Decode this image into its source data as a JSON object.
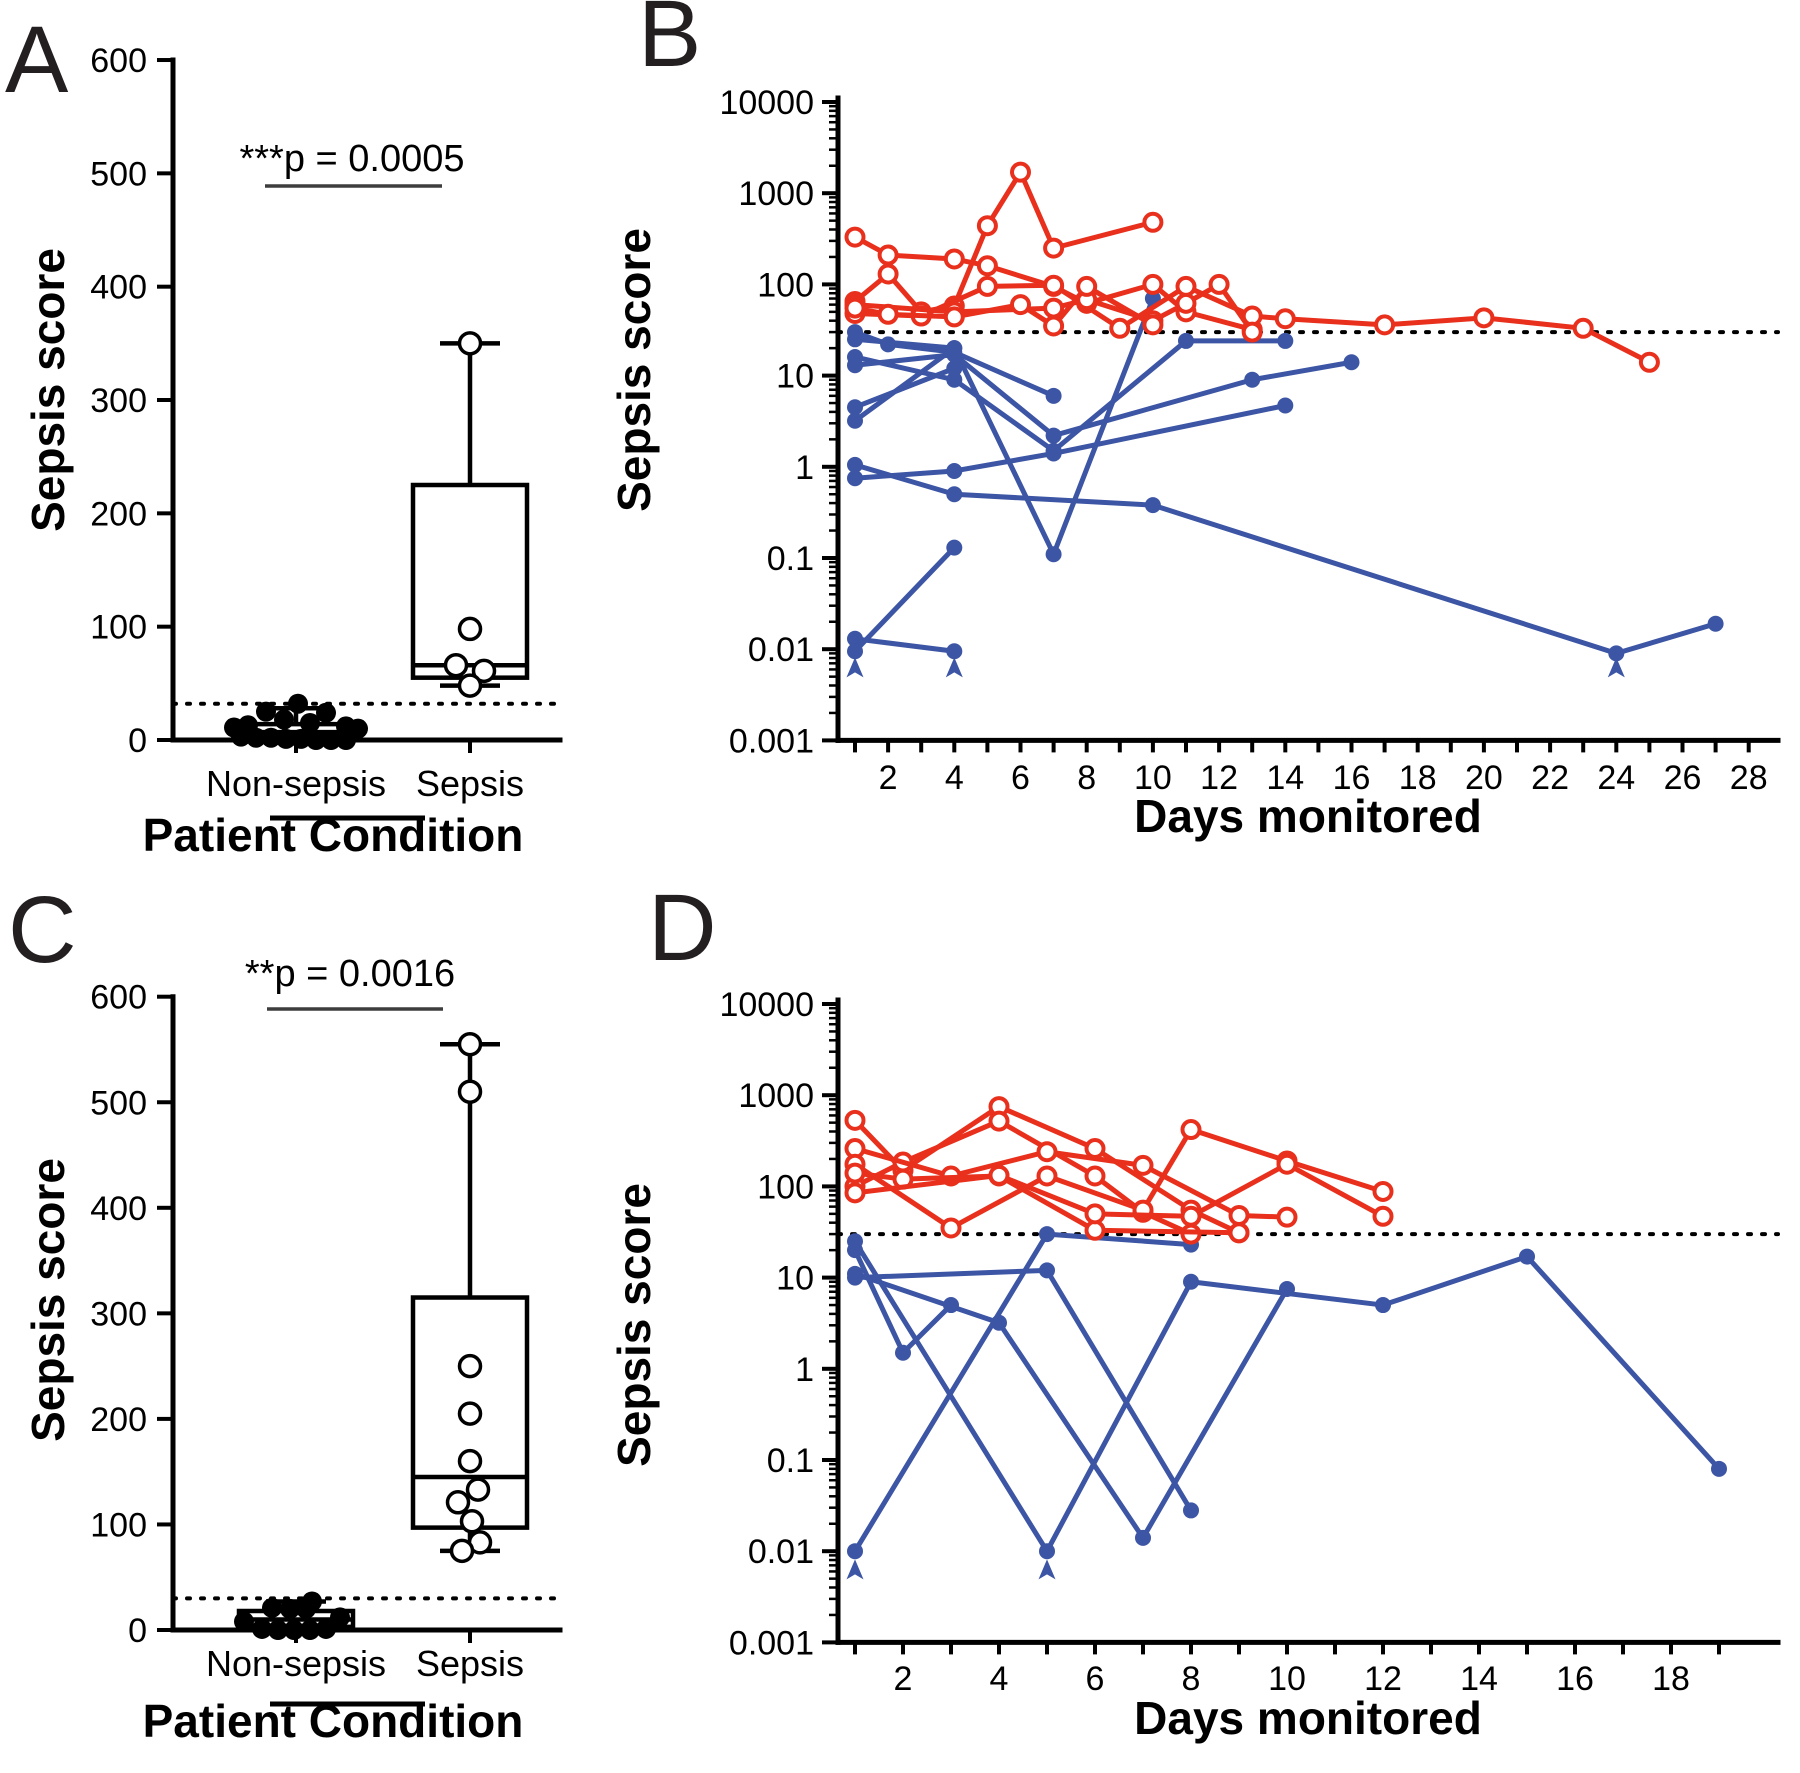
{
  "colors": {
    "sepsis": "#e8301d",
    "non_sepsis": "#3c55a4",
    "ink": "#000000"
  },
  "chart_data": [
    {
      "panel": "A",
      "letter": "A",
      "type": "box",
      "ylabel": "Sepsis score",
      "xlabel": "Patient Condition",
      "annotation": "***p = 0.0005",
      "ylim": [
        0,
        600
      ],
      "y_ticks": [
        0,
        100,
        200,
        300,
        400,
        500,
        600
      ],
      "categories": [
        "Non-sepsis",
        "Sepsis"
      ],
      "threshold": 32,
      "boxes": [
        {
          "category": "Non-sepsis",
          "marker": "filled-circle",
          "whisker_low": 0,
          "q1": 2,
          "median": 7,
          "q3": 14,
          "whisker_high": 28,
          "points": [
            32,
            25,
            24,
            18,
            15,
            13,
            12,
            11,
            10,
            3,
            2,
            2,
            1,
            1,
            0,
            0,
            0
          ]
        },
        {
          "category": "Sepsis",
          "marker": "open-circle",
          "whisker_low": 48,
          "q1": 55,
          "median": 66,
          "q3": 225,
          "whisker_high": 350,
          "points": [
            350,
            98,
            66,
            61,
            48
          ]
        }
      ]
    },
    {
      "panel": "B",
      "letter": "B",
      "type": "line",
      "yscale": "log",
      "ylabel": "Sepsis score",
      "xlabel": "Days monitored",
      "ylim": [
        0.001,
        10000
      ],
      "y_ticks": [
        "0.001",
        "0.01",
        "0.1",
        "1",
        "10",
        "100",
        "1000",
        "10000"
      ],
      "x_ticks": [
        2,
        4,
        6,
        8,
        10,
        12,
        14,
        16,
        18,
        20,
        22,
        24,
        26,
        28
      ],
      "xlim": [
        1,
        28
      ],
      "threshold": 30,
      "series": [
        {
          "group": "Sepsis",
          "marker": "open-circle",
          "points": [
            [
              1,
              65
            ],
            [
              2,
              130
            ],
            [
              3,
              50
            ],
            [
              4,
              58
            ],
            [
              5,
              440
            ],
            [
              6,
              1700
            ],
            [
              7,
              250
            ],
            [
              10,
              480
            ]
          ]
        },
        {
          "group": "Sepsis",
          "marker": "open-circle",
          "points": [
            [
              1,
              330
            ],
            [
              2,
              210
            ],
            [
              4,
              190
            ],
            [
              5,
              160
            ],
            [
              7,
              95
            ],
            [
              8,
              62
            ],
            [
              10,
              100
            ],
            [
              11,
              50
            ],
            [
              13,
              32
            ]
          ]
        },
        {
          "group": "Sepsis",
          "marker": "open-circle",
          "points": [
            [
              1,
              48
            ],
            [
              3,
              45
            ],
            [
              5,
              95
            ],
            [
              7,
              98
            ],
            [
              9,
              33
            ],
            [
              11,
              95
            ],
            [
              13,
              45
            ],
            [
              14,
              42
            ],
            [
              17,
              36
            ],
            [
              20,
              43
            ],
            [
              23,
              33
            ],
            [
              25,
              14
            ]
          ]
        },
        {
          "group": "Sepsis",
          "marker": "open-circle",
          "points": [
            [
              1,
              60
            ],
            [
              4,
              50
            ],
            [
              7,
              55
            ],
            [
              8,
              68
            ],
            [
              10,
              40
            ],
            [
              11,
              62
            ],
            [
              12,
              100
            ],
            [
              13,
              30
            ]
          ]
        },
        {
          "group": "Sepsis",
          "marker": "open-circle",
          "points": [
            [
              1,
              55
            ],
            [
              2,
              47
            ],
            [
              4,
              44
            ],
            [
              6,
              60
            ],
            [
              7,
              35
            ],
            [
              8,
              95
            ],
            [
              10,
              36
            ]
          ]
        },
        {
          "group": "Non-sepsis",
          "marker": "filled-circle",
          "points": [
            [
              1,
              30
            ],
            [
              2,
              22
            ],
            [
              4,
              18
            ],
            [
              7,
              6
            ]
          ]
        },
        {
          "group": "Non-sepsis",
          "marker": "filled-circle",
          "points": [
            [
              1,
              25
            ],
            [
              4,
              20
            ],
            [
              7,
              0.11
            ],
            [
              10,
              70
            ]
          ]
        },
        {
          "group": "Non-sepsis",
          "marker": "filled-circle",
          "points": [
            [
              1,
              16
            ],
            [
              4,
              9
            ],
            [
              7,
              1.5
            ],
            [
              11,
              24
            ],
            [
              14,
              24
            ]
          ]
        },
        {
          "group": "Non-sepsis",
          "marker": "filled-circle",
          "points": [
            [
              1,
              13
            ],
            [
              4,
              17
            ],
            [
              7,
              2.2
            ],
            [
              13,
              9
            ],
            [
              16,
              14
            ]
          ]
        },
        {
          "group": "Non-sepsis",
          "marker": "filled-circle",
          "points": [
            [
              1,
              4.5
            ],
            [
              4,
              12
            ]
          ]
        },
        {
          "group": "Non-sepsis",
          "marker": "filled-circle",
          "points": [
            [
              1,
              3.2
            ],
            [
              4,
              20
            ]
          ]
        },
        {
          "group": "Non-sepsis",
          "marker": "filled-circle",
          "points": [
            [
              1,
              1.05
            ],
            [
              4,
              0.5
            ],
            [
              10,
              0.38
            ],
            [
              24,
              0.009
            ],
            [
              27,
              0.019
            ]
          ]
        },
        {
          "group": "Non-sepsis",
          "marker": "filled-circle",
          "points": [
            [
              1,
              0.75
            ],
            [
              4,
              0.9
            ],
            [
              7,
              1.4
            ],
            [
              14,
              4.7
            ]
          ]
        },
        {
          "group": "Non-sepsis",
          "marker": "filled-circle",
          "points": [
            [
              1,
              0.013
            ],
            [
              4,
              0.0095
            ]
          ]
        },
        {
          "group": "Non-sepsis",
          "marker": "filled-circle",
          "points": [
            [
              1,
              0.0095
            ],
            [
              4,
              0.13
            ]
          ]
        }
      ],
      "censored": {
        "group": "Non-sepsis",
        "marker": "up-arrowhead",
        "points": [
          [
            1,
            0.006
          ],
          [
            4,
            0.006
          ],
          [
            24,
            0.006
          ]
        ]
      }
    },
    {
      "panel": "C",
      "letter": "C",
      "type": "box",
      "ylabel": "Sepsis score",
      "xlabel": "Patient Condition",
      "annotation": "**p = 0.0016",
      "ylim": [
        0,
        600
      ],
      "y_ticks": [
        0,
        100,
        200,
        300,
        400,
        500,
        600
      ],
      "categories": [
        "Non-sepsis",
        "Sepsis"
      ],
      "threshold": 30,
      "boxes": [
        {
          "category": "Non-sepsis",
          "marker": "filled-circle",
          "whisker_low": 0,
          "q1": 3,
          "median": 10,
          "q3": 18,
          "whisker_high": 27,
          "points": [
            27,
            21,
            20,
            20,
            8,
            12,
            1,
            0,
            0,
            0,
            1
          ]
        },
        {
          "category": "Sepsis",
          "marker": "open-circle",
          "whisker_low": 75,
          "q1": 97,
          "median": 145,
          "q3": 315,
          "whisker_high": 555,
          "points": [
            555,
            510,
            250,
            205,
            160,
            133,
            121,
            103,
            83,
            75
          ]
        }
      ]
    },
    {
      "panel": "D",
      "letter": "D",
      "type": "line",
      "yscale": "log",
      "ylabel": "Sepsis score",
      "xlabel": "Days monitored",
      "ylim": [
        0.001,
        10000
      ],
      "y_ticks": [
        "0.001",
        "0.01",
        "0.1",
        "1",
        "10",
        "100",
        "1000",
        "10000"
      ],
      "x_ticks": [
        2,
        4,
        6,
        8,
        10,
        12,
        14,
        16,
        18
      ],
      "xlim": [
        1,
        19
      ],
      "threshold": 30,
      "series": [
        {
          "group": "Sepsis",
          "marker": "open-circle",
          "points": [
            [
              1,
              530
            ],
            [
              2,
              150
            ],
            [
              4,
              750
            ],
            [
              6,
              260
            ],
            [
              8,
              55
            ],
            [
              9,
              31
            ]
          ]
        },
        {
          "group": "Sepsis",
          "marker": "open-circle",
          "points": [
            [
              1,
              100
            ],
            [
              2,
              185
            ],
            [
              4,
              520
            ],
            [
              6,
              130
            ],
            [
              7,
              52
            ],
            [
              8,
              30
            ]
          ]
        },
        {
          "group": "Sepsis",
          "marker": "open-circle",
          "points": [
            [
              1,
              260
            ],
            [
              3,
              130
            ],
            [
              5,
              240
            ],
            [
              7,
              170
            ],
            [
              9,
              48
            ],
            [
              10,
              46
            ]
          ]
        },
        {
          "group": "Sepsis",
          "marker": "open-circle",
          "points": [
            [
              1,
              175
            ],
            [
              3,
              35
            ],
            [
              5,
              130
            ],
            [
              7,
              55
            ],
            [
              8,
              420
            ],
            [
              10,
              190
            ],
            [
              12,
              88
            ]
          ]
        },
        {
          "group": "Sepsis",
          "marker": "open-circle",
          "points": [
            [
              1,
              140
            ],
            [
              2,
              120
            ],
            [
              4,
              130
            ],
            [
              6,
              33
            ],
            [
              9,
              31
            ]
          ]
        },
        {
          "group": "Sepsis",
          "marker": "open-circle",
          "points": [
            [
              1,
              85
            ],
            [
              4,
              132
            ],
            [
              6,
              50
            ],
            [
              8,
              47
            ],
            [
              10,
              175
            ],
            [
              12,
              47
            ]
          ]
        },
        {
          "group": "Non-sepsis",
          "marker": "filled-circle",
          "points": [
            [
              1,
              20
            ],
            [
              2,
              1.5
            ],
            [
              3,
              5
            ]
          ]
        },
        {
          "group": "Non-sepsis",
          "marker": "filled-circle",
          "points": [
            [
              1,
              25
            ],
            [
              5,
              0.01
            ],
            [
              8,
              9
            ],
            [
              12,
              5
            ],
            [
              15,
              17
            ],
            [
              19,
              0.08
            ]
          ]
        },
        {
          "group": "Non-sepsis",
          "marker": "filled-circle",
          "points": [
            [
              1,
              0.01
            ],
            [
              5,
              30
            ],
            [
              8,
              23
            ]
          ]
        },
        {
          "group": "Non-sepsis",
          "marker": "filled-circle",
          "points": [
            [
              1,
              11
            ],
            [
              4,
              3.2
            ],
            [
              7,
              0.014
            ],
            [
              10,
              7.5
            ]
          ]
        },
        {
          "group": "Non-sepsis",
          "marker": "filled-circle",
          "points": [
            [
              1,
              10
            ],
            [
              5,
              12
            ],
            [
              8,
              0.028
            ]
          ]
        }
      ],
      "censored": {
        "group": "Non-sepsis",
        "marker": "up-arrowhead",
        "points": [
          [
            1,
            0.006
          ],
          [
            5,
            0.006
          ]
        ]
      }
    }
  ]
}
